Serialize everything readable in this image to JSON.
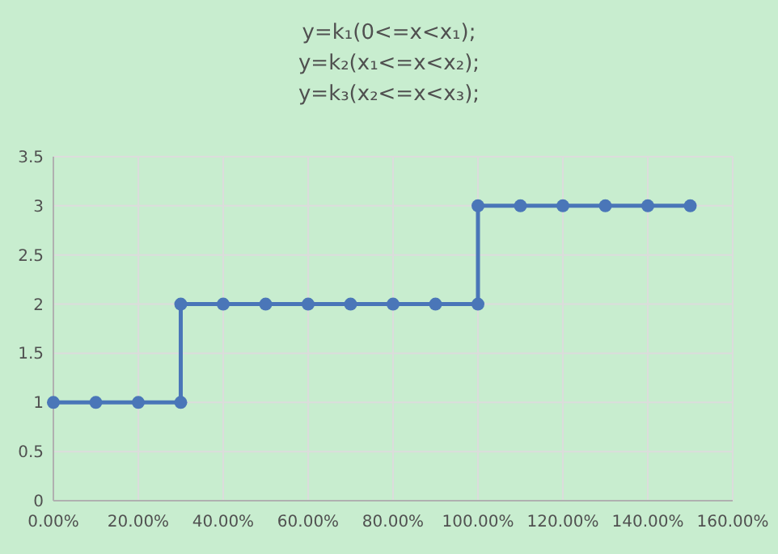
{
  "chart_data": {
    "type": "line",
    "title": "y=k₁(0<=x<x₁);\ny=k₂(x₁<=x<x₂);\ny=k₃(x₂<=x<x₃);",
    "x": [
      0,
      10,
      20,
      30,
      30,
      40,
      50,
      60,
      70,
      80,
      90,
      100,
      100,
      110,
      120,
      130,
      140,
      150
    ],
    "series": [
      {
        "color": "#4a76b8",
        "values": [
          1,
          1,
          1,
          1,
          2,
          2,
          2,
          2,
          2,
          2,
          2,
          2,
          3,
          3,
          3,
          3,
          3,
          3
        ]
      }
    ],
    "xlim": [
      0,
      160
    ],
    "xticks": [
      {
        "value": 0,
        "label": "0.00%"
      },
      {
        "value": 20,
        "label": "20.00%"
      },
      {
        "value": 40,
        "label": "40.00%"
      },
      {
        "value": 60,
        "label": "60.00%"
      },
      {
        "value": 80,
        "label": "80.00%"
      },
      {
        "value": 100,
        "label": "100.00%"
      },
      {
        "value": 120,
        "label": "120.00%"
      },
      {
        "value": 140,
        "label": "140.00%"
      },
      {
        "value": 160,
        "label": "160.00%"
      }
    ],
    "ylim": [
      0,
      3.5
    ],
    "yticks": [
      0,
      0.5,
      1,
      1.5,
      2,
      2.5,
      3,
      3.5
    ],
    "grid": true,
    "marker": "circle",
    "line_style": "solid"
  }
}
